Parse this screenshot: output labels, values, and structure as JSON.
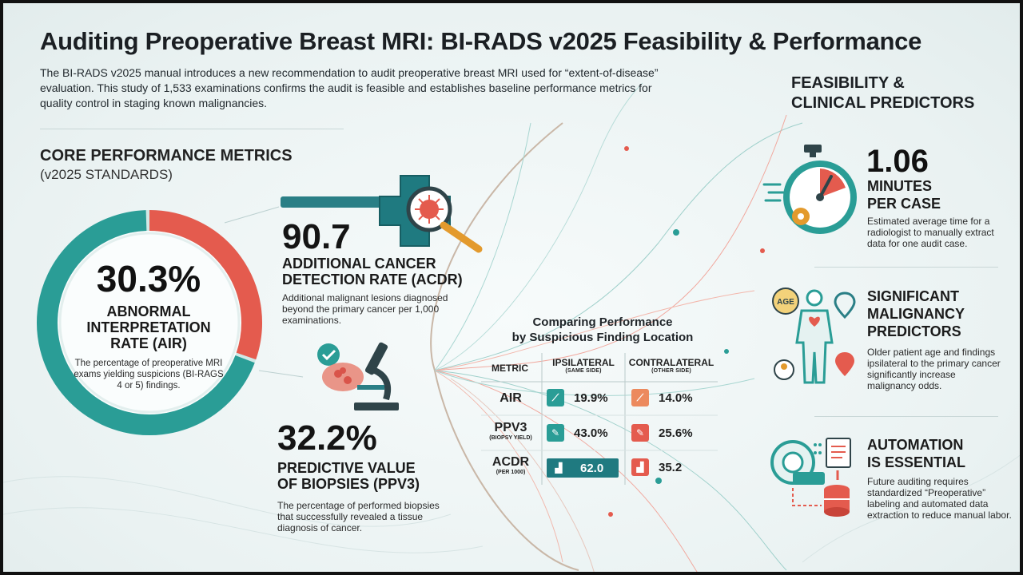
{
  "header": {
    "title": "Auditing Preoperative Breast MRI: BI-RADS v2025 Feasibility & Performance",
    "intro": "The BI-RADS v2025 manual introduces a new recommendation to audit preoperative breast MRI used for “extent-of-disease” evaluation. This study of 1,533 examinations confirms the audit is feasible and establishes baseline performance metrics for quality control in staging known malignancies."
  },
  "core": {
    "title": "CORE PERFORMANCE METRICS",
    "subtitle": "(v2025 STANDARDS)",
    "air": {
      "value": "30.3%",
      "label_1": "ABNORMAL",
      "label_2": "INTERPRETATION",
      "label_3": "RATE (AIR)",
      "description": "The percentage of preoperative MRI exams yielding suspicions (BI-RAGS 4 or 5) findings.",
      "ring_fraction": 0.303
    },
    "acdr": {
      "value": "90.7",
      "label_1": "ADDITIONAL CANCER",
      "label_2": "DETECTION RATE (ACDR)",
      "description": "Additional malignant lesions diagnosed beyond the primary cancer per 1,000 examinations."
    },
    "ppv3": {
      "value": "32.2%",
      "label_1": "PREDICTIVE VALUE",
      "label_2": "OF BIOPSIES (PPV3)",
      "description": "The percentage of performed biopsies that successfully revealed a tissue diagnosis of cancer."
    }
  },
  "comparison": {
    "title_1": "Comparing Performance",
    "title_2": "by Suspicious Finding Location",
    "col_metric": "METRIC",
    "col_ipsi": "IPSILATERAL",
    "col_ipsi_sub": "(SAME SIDE)",
    "col_contra": "CONTRALATERAL",
    "col_contra_sub": "(OTHER SIDE)",
    "rows": [
      {
        "metric": "AIR",
        "sub": "",
        "ipsi": "19.9%",
        "contra": "14.0%"
      },
      {
        "metric": "PPV3",
        "sub": "(BIOPSY YIELD)",
        "ipsi": "43.0%",
        "contra": "25.6%"
      },
      {
        "metric": "ACDR",
        "sub": "(PER 1000)",
        "ipsi": "62.0",
        "contra": "35.2"
      }
    ]
  },
  "right": {
    "title_1": "FEASIBILITY &",
    "title_2": "CLINICAL PREDICTORS",
    "time": {
      "value": "1.06",
      "label_1": "MINUTES",
      "label_2": "PER CASE",
      "description": "Estimated average time for a radiologist to manually extract data for one audit case."
    },
    "predictors": {
      "label_1": "SIGNIFICANT",
      "label_2": "MALIGNANCY",
      "label_3": "PREDICTORS",
      "description": "Older patient age and findings ipsilateral to the primary cancer significantly increase malignancy odds.",
      "age_badge": "AGE"
    },
    "automation": {
      "label_1": "AUTOMATION",
      "label_2": "IS ESSENTIAL",
      "description": "Future auditing requires standardized “Preoperative” labeling and automated data extraction to reduce manual labor."
    }
  },
  "colors": {
    "teal": "#2a9d96",
    "red": "#e45b4e",
    "dark_teal": "#1f7a80"
  }
}
